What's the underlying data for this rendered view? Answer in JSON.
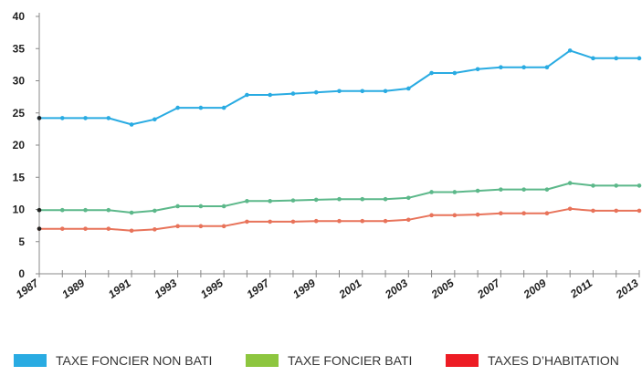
{
  "chart_data": {
    "type": "line",
    "title": "",
    "xlabel": "",
    "ylabel": "",
    "ylim": [
      0,
      40
    ],
    "yticks": [
      "0",
      "5",
      "10",
      "15",
      "20",
      "25",
      "30",
      "35",
      "40"
    ],
    "x": [
      1987,
      1988,
      1989,
      1990,
      1991,
      1992,
      1993,
      1994,
      1995,
      1996,
      1997,
      1998,
      1999,
      2000,
      2001,
      2002,
      2003,
      2004,
      2005,
      2006,
      2007,
      2008,
      2009,
      2010,
      2011,
      2012,
      2013
    ],
    "xtick_labels": [
      "1987",
      "1989",
      "1991",
      "1993",
      "1995",
      "1997",
      "1999",
      "2001",
      "2003",
      "2005",
      "2007",
      "2009",
      "2011",
      "2013"
    ],
    "grid": false,
    "legend_position": "bottom",
    "series": [
      {
        "name": "TAXE FONCIER NON BATI",
        "color": "#29abe2",
        "values": [
          24.2,
          24.2,
          24.2,
          24.2,
          23.2,
          24.0,
          25.8,
          25.8,
          25.8,
          27.8,
          27.8,
          28.0,
          28.2,
          28.4,
          28.4,
          28.4,
          28.8,
          31.2,
          31.2,
          31.8,
          32.1,
          32.1,
          32.1,
          34.7,
          33.5,
          33.5,
          33.5
        ]
      },
      {
        "name": "TAXE FONCIER BATI",
        "color": "#5cb88a",
        "values": [
          9.9,
          9.9,
          9.9,
          9.9,
          9.5,
          9.8,
          10.5,
          10.5,
          10.5,
          11.3,
          11.3,
          11.4,
          11.5,
          11.6,
          11.6,
          11.6,
          11.8,
          12.7,
          12.7,
          12.9,
          13.1,
          13.1,
          13.1,
          14.1,
          13.7,
          13.7,
          13.7
        ]
      },
      {
        "name": "TAXES D’HABITATION",
        "color": "#e8735a",
        "values": [
          7.0,
          7.0,
          7.0,
          7.0,
          6.7,
          6.9,
          7.4,
          7.4,
          7.4,
          8.1,
          8.1,
          8.1,
          8.2,
          8.2,
          8.2,
          8.2,
          8.4,
          9.1,
          9.1,
          9.2,
          9.4,
          9.4,
          9.4,
          10.1,
          9.8,
          9.8,
          9.8
        ]
      }
    ]
  },
  "legend": [
    {
      "label": "TAXE FONCIER NON BATI",
      "color": "#29abe2"
    },
    {
      "label": "TAXE FONCIER BATI",
      "color": "#8dc63f"
    },
    {
      "label": "TAXES D’HABITATION",
      "color": "#ed1c24"
    }
  ]
}
